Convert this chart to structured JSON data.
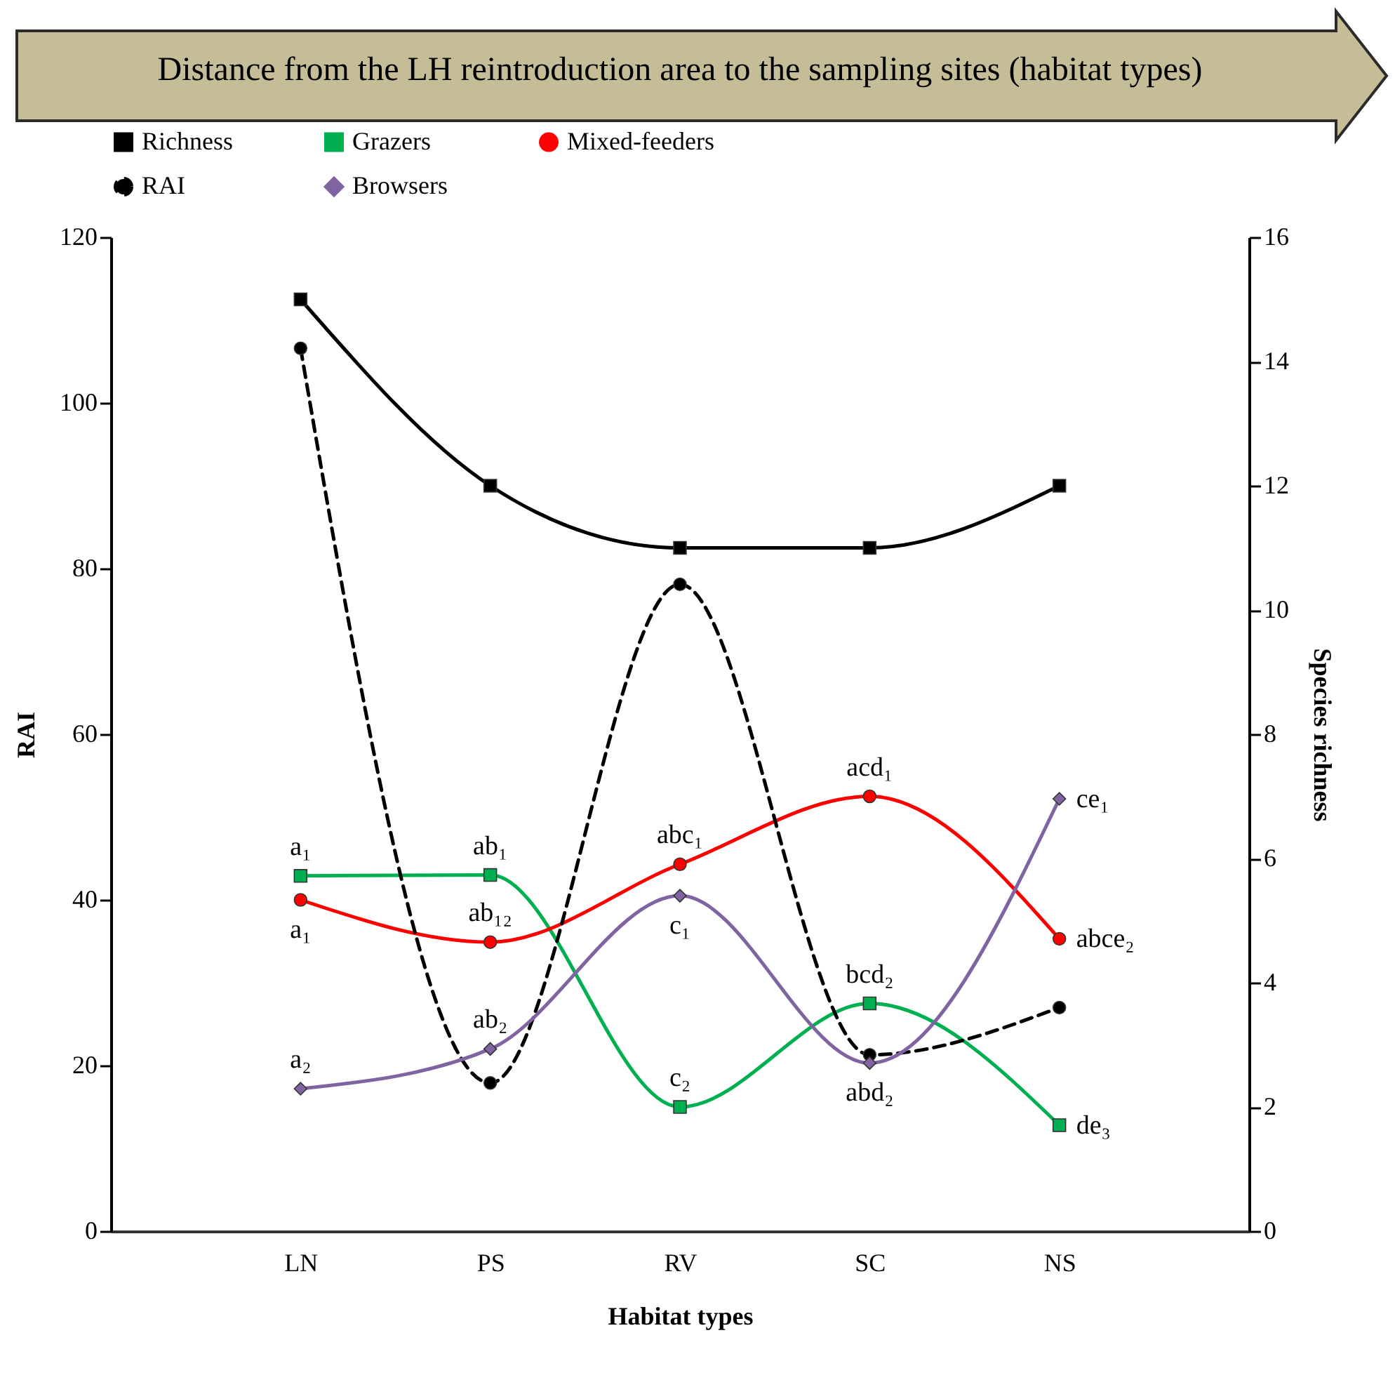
{
  "chart_data": {
    "type": "line",
    "title": "Distance from the LH reintroduction area to the sampling sites (habitat types)",
    "xlabel": "Habitat types",
    "ylabel": "RAI",
    "y2label": "Species richness",
    "categories": [
      "LN",
      "PS",
      "RV",
      "SC",
      "NS"
    ],
    "ylim": [
      0,
      120
    ],
    "yticks": [
      0,
      20,
      40,
      60,
      80,
      100,
      120
    ],
    "y2lim": [
      0,
      16
    ],
    "y2ticks": [
      0,
      2,
      4,
      6,
      8,
      10,
      12,
      14,
      16
    ],
    "legend": "top",
    "series": [
      {
        "name": "Richness",
        "color": "#000000",
        "axis": "y2",
        "marker": "square",
        "line_style": "solid",
        "values": [
          15,
          12,
          11,
          11,
          12
        ]
      },
      {
        "name": "Grazers",
        "color": "#00b050",
        "marker": "square",
        "line_style": "solid",
        "values": [
          42.9,
          43,
          15,
          27.5,
          12.8
        ]
      },
      {
        "name": "Mixed-feeders",
        "color": "#ff0000",
        "marker": "circle",
        "line_style": "solid",
        "values": [
          40,
          34.9,
          44.3,
          52.5,
          35.3
        ]
      },
      {
        "name": "RAI",
        "color": "#000000",
        "marker": "circle",
        "line_style": "dashed",
        "values": [
          106.6,
          17.9,
          78.1,
          21.3,
          27
        ]
      },
      {
        "name": "Browsers",
        "color": "#8064a2",
        "marker": "diamond",
        "line_style": "solid",
        "values": [
          17.2,
          22,
          40.5,
          20.3,
          52.2
        ]
      }
    ],
    "annotations": [
      {
        "text": "a₁",
        "x": "LN",
        "y": 42.9
      },
      {
        "text": "a₁",
        "x": "LN",
        "y": 40
      },
      {
        "text": "a₂",
        "x": "LN",
        "y": 17.2
      },
      {
        "text": "ab₁",
        "x": "PS",
        "y": 43
      },
      {
        "text": "ab₁₂",
        "x": "PS",
        "y": 34.9
      },
      {
        "text": "ab₂",
        "x": "PS",
        "y": 22
      },
      {
        "text": "abc₁",
        "x": "RV",
        "y": 44.3
      },
      {
        "text": "c₁",
        "x": "RV",
        "y": 40.5
      },
      {
        "text": "c₂",
        "x": "RV",
        "y": 15
      },
      {
        "text": "acd₁",
        "x": "SC",
        "y": 52.5
      },
      {
        "text": "bcd₂",
        "x": "SC",
        "y": 27.5
      },
      {
        "text": "abd₂",
        "x": "SC",
        "y": 20.3
      },
      {
        "text": "ce₁",
        "x": "NS",
        "y": 52.2
      },
      {
        "text": "abce₂",
        "x": "NS",
        "y": 35.3
      },
      {
        "text": "de₃",
        "x": "NS",
        "y": 12.8
      }
    ]
  }
}
